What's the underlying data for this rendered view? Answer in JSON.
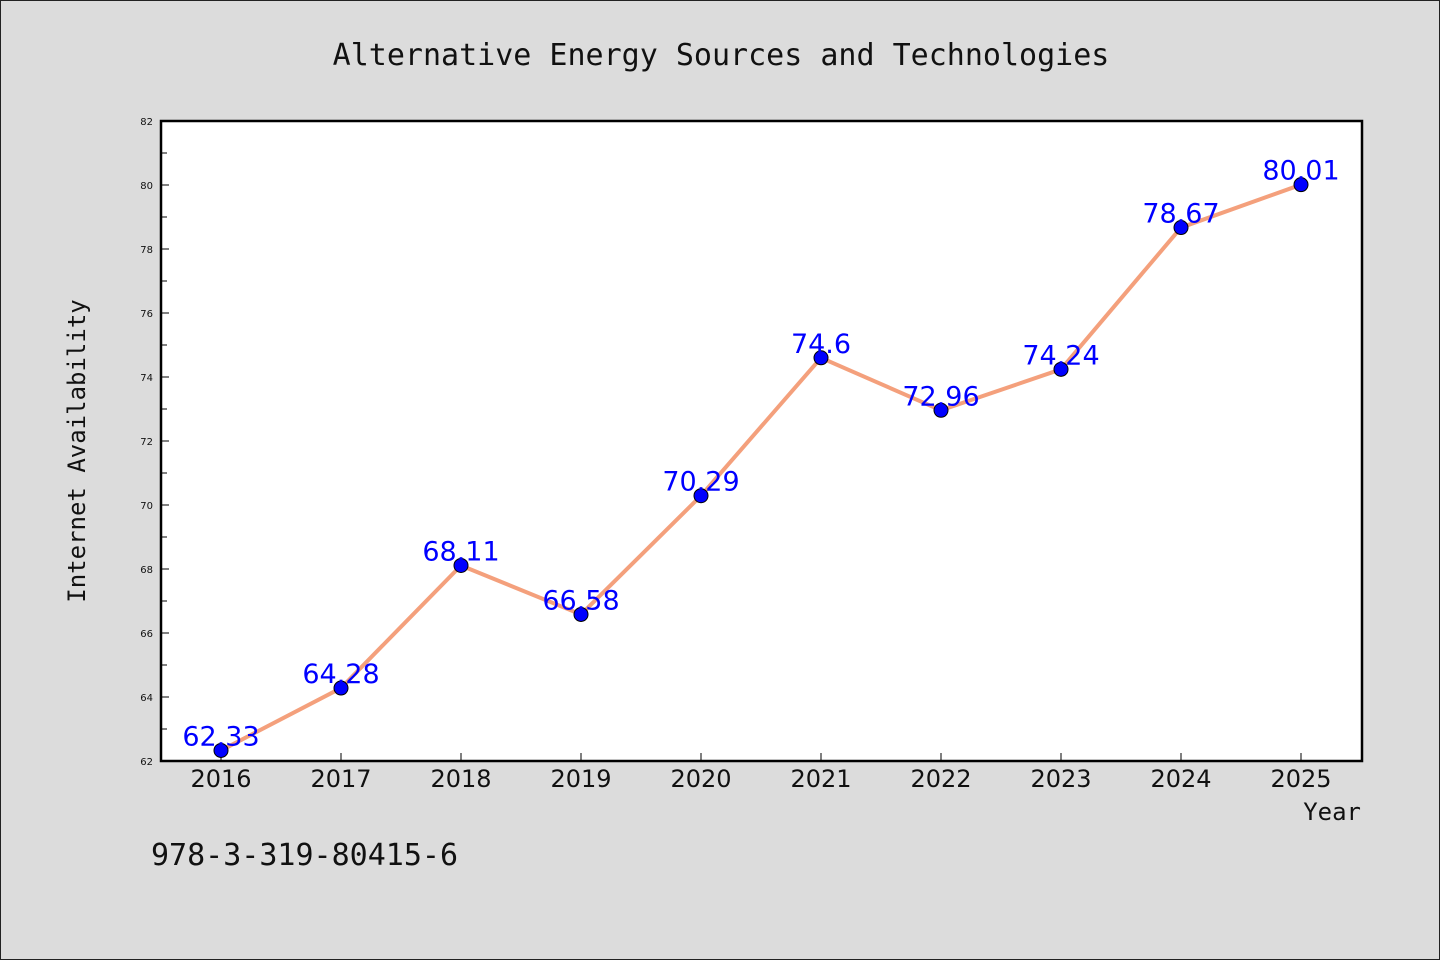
{
  "chart_data": {
    "type": "line",
    "title": "Alternative Energy Sources and Technologies",
    "xlabel": "Year",
    "ylabel": "Internet Availability",
    "categories": [
      "2016",
      "2017",
      "2018",
      "2019",
      "2020",
      "2021",
      "2022",
      "2023",
      "2024",
      "2025"
    ],
    "series": [
      {
        "values": [
          62.33,
          64.28,
          68.11,
          66.58,
          70.29,
          74.6,
          72.96,
          74.24,
          78.67,
          80.01
        ],
        "line_color": "#f4a07c",
        "marker_color": "#0000ff"
      }
    ],
    "data_labels": [
      "62.33",
      "64.28",
      "68.11",
      "66.58",
      "70.29",
      "74.6",
      "72.96",
      "74.24",
      "78.67",
      "80.01"
    ],
    "ylim": [
      62,
      82
    ],
    "yticks": [
      62,
      64,
      66,
      68,
      70,
      72,
      74,
      76,
      78,
      80,
      82
    ],
    "grid": false,
    "legend": "none"
  },
  "footnote": "978-3-319-80415-6",
  "colors": {
    "background": "#dcdcdc",
    "plot_background": "#ffffff",
    "label_color": "#0000ff"
  }
}
